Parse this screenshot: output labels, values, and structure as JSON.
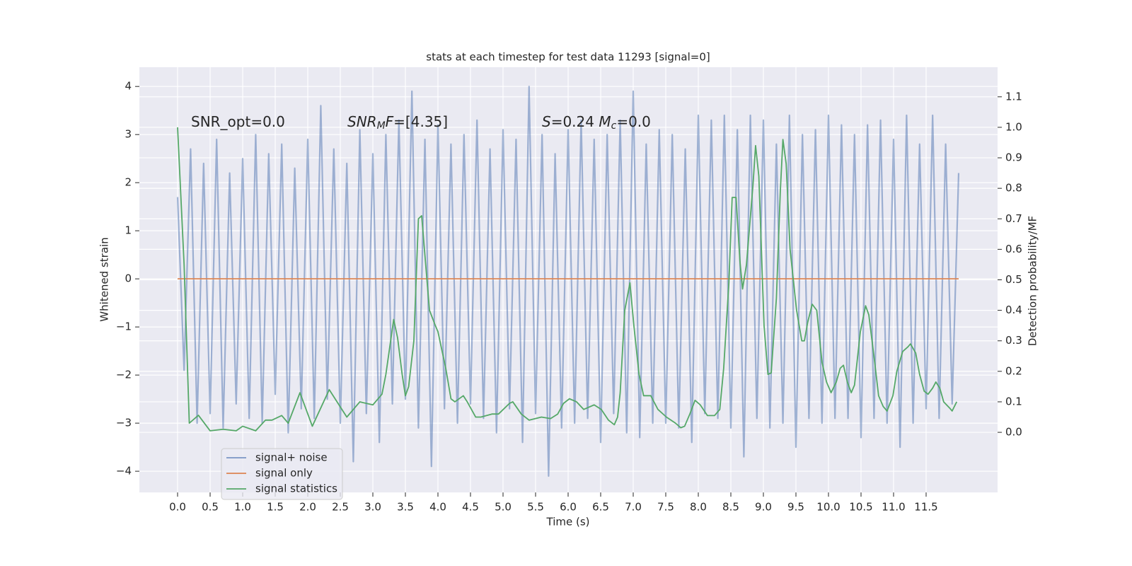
{
  "chart_data": {
    "type": "line",
    "title": "stats at each timestep for test data 11293 [signal=0]",
    "xlabel": "Time (s)",
    "ylabel": "Whitened strain",
    "y2label": "Detection probability/MF",
    "xlim": [
      -0.587,
      12.598
    ],
    "ylim": [
      -4.44,
      4.4
    ],
    "y2lim": [
      -0.197,
      1.197
    ],
    "xticks": [
      {
        "value": 0,
        "label": "0.0"
      },
      {
        "value": 0.5,
        "label": "0.5"
      },
      {
        "value": 1,
        "label": "1.0"
      },
      {
        "value": 1.5,
        "label": "1.5"
      },
      {
        "value": 2,
        "label": "2.0"
      },
      {
        "value": 2.5,
        "label": "2.5"
      },
      {
        "value": 3,
        "label": "3.0"
      },
      {
        "value": 3.5,
        "label": "3.5"
      },
      {
        "value": 4,
        "label": "4.0"
      },
      {
        "value": 4.5,
        "label": "4.5"
      },
      {
        "value": 5,
        "label": "5.0"
      },
      {
        "value": 5.5,
        "label": "5.5"
      },
      {
        "value": 6,
        "label": "6.0"
      },
      {
        "value": 6.5,
        "label": "6.5"
      },
      {
        "value": 7,
        "label": "7.0"
      },
      {
        "value": 7.5,
        "label": "7.5"
      },
      {
        "value": 8,
        "label": "8.0"
      },
      {
        "value": 8.5,
        "label": "8.5"
      },
      {
        "value": 9,
        "label": "9.0"
      },
      {
        "value": 9.5,
        "label": "9.5"
      },
      {
        "value": 10,
        "label": "10.0"
      },
      {
        "value": 10.5,
        "label": "10.5"
      },
      {
        "value": 11,
        "label": "11.0"
      },
      {
        "value": 11.5,
        "label": "11.5"
      }
    ],
    "yticks": [
      {
        "value": -4,
        "label": "−4"
      },
      {
        "value": -3,
        "label": "−3"
      },
      {
        "value": -2,
        "label": "−2"
      },
      {
        "value": -1,
        "label": "−1"
      },
      0,
      1,
      2,
      3,
      4
    ],
    "y2ticks": [
      {
        "value": 0,
        "label": "0.0"
      },
      {
        "value": 0.1,
        "label": "0.1"
      },
      {
        "value": 0.2,
        "label": "0.2"
      },
      {
        "value": 0.3,
        "label": "0.3"
      },
      {
        "value": 0.4,
        "label": "0.4"
      },
      {
        "value": 0.5,
        "label": "0.5"
      },
      {
        "value": 0.6,
        "label": "0.6"
      },
      {
        "value": 0.7,
        "label": "0.7"
      },
      {
        "value": 0.8,
        "label": "0.8"
      },
      {
        "value": 0.9,
        "label": "0.9"
      },
      {
        "value": 1,
        "label": "1.0"
      },
      {
        "value": 1.1,
        "label": "1.1"
      }
    ],
    "grid": true,
    "legend_loc": "lower left",
    "annotations": [
      [
        {
          "text": "SNR_opt=0.0"
        }
      ],
      [
        {
          "text": "SNR",
          "italic": true
        },
        {
          "text": "M",
          "italic": true,
          "sub": true
        },
        {
          "text": "F",
          "italic": true
        },
        {
          "text": "=[4.35]"
        }
      ],
      [
        {
          "text": "S",
          "italic": true
        },
        {
          "text": "=0.24   "
        },
        {
          "text": "M",
          "italic": true
        },
        {
          "text": "c",
          "italic": true,
          "sub": true
        },
        {
          "text": "=0.0"
        }
      ]
    ],
    "series": [
      {
        "name": "signal+ noise",
        "color": "#4c72b0",
        "alpha": 0.5,
        "x": [
          0,
          0.1,
          0.2,
          0.3,
          0.4,
          0.5,
          0.6,
          0.7,
          0.8,
          0.9,
          1.0,
          1.1,
          1.2,
          1.3,
          1.4,
          1.5,
          1.6,
          1.7,
          1.8,
          1.9,
          2.0,
          2.1,
          2.2,
          2.3,
          2.4,
          2.5,
          2.6,
          2.7,
          2.8,
          2.9,
          3.0,
          3.1,
          3.2,
          3.3,
          3.4,
          3.5,
          3.6,
          3.7,
          3.8,
          3.9,
          4.0,
          4.1,
          4.2,
          4.3,
          4.4,
          4.5,
          4.6,
          4.7,
          4.8,
          4.9,
          5.0,
          5.1,
          5.2,
          5.3,
          5.4,
          5.5,
          5.6,
          5.7,
          5.8,
          5.9,
          6.0,
          6.1,
          6.2,
          6.3,
          6.4,
          6.5,
          6.6,
          6.7,
          6.8,
          6.9,
          7.0,
          7.1,
          7.2,
          7.3,
          7.4,
          7.5,
          7.6,
          7.7,
          7.8,
          7.9,
          8.0,
          8.1,
          8.2,
          8.3,
          8.4,
          8.5,
          8.6,
          8.7,
          8.8,
          8.9,
          9.0,
          9.1,
          9.2,
          9.3,
          9.4,
          9.5,
          9.6,
          9.7,
          9.8,
          9.9,
          10.0,
          10.1,
          10.2,
          10.3,
          10.4,
          10.5,
          10.6,
          10.7,
          10.8,
          10.9,
          11.0,
          11.1,
          11.2,
          11.3,
          11.4,
          11.5,
          11.6,
          11.7,
          11.8,
          11.9,
          12.0
        ],
        "values": [
          1.7,
          -1.9,
          2.7,
          -3.0,
          2.4,
          -2.8,
          2.9,
          -3.1,
          2.2,
          -2.6,
          2.5,
          -2.9,
          3.0,
          -3.0,
          2.6,
          -2.4,
          2.8,
          -3.2,
          2.3,
          -2.7,
          2.9,
          -2.9,
          3.6,
          -2.5,
          2.7,
          -3.0,
          2.4,
          -3.8,
          3.1,
          -2.8,
          2.6,
          -3.4,
          3.0,
          -2.6,
          3.3,
          -2.5,
          3.9,
          -3.1,
          2.9,
          -3.9,
          3.2,
          -2.7,
          2.8,
          -3.0,
          3.0,
          -2.6,
          3.3,
          -2.9,
          2.7,
          -3.2,
          3.1,
          -2.7,
          2.9,
          -3.4,
          4.0,
          -2.8,
          3.0,
          -4.1,
          2.6,
          -3.1,
          3.1,
          -3.0,
          3.3,
          -2.9,
          2.9,
          -3.4,
          3.0,
          -2.8,
          3.3,
          -3.2,
          3.9,
          -3.3,
          2.8,
          -3.0,
          3.1,
          -3.0,
          3.0,
          -3.1,
          2.7,
          -3.4,
          3.4,
          -2.8,
          3.3,
          -2.9,
          3.4,
          -3.1,
          3.1,
          -3.7,
          3.4,
          -2.9,
          3.3,
          -3.1,
          2.8,
          -3.0,
          3.4,
          -3.5,
          3.0,
          -2.9,
          3.1,
          -3.0,
          3.4,
          -2.9,
          3.2,
          -2.9,
          3.0,
          -3.3,
          3.2,
          -2.9,
          3.3,
          -3.0,
          2.9,
          -3.5,
          3.4,
          -3.0,
          2.8,
          -2.7,
          3.4,
          -2.9,
          2.8,
          -2.6,
          2.2
        ]
      },
      {
        "name": "signal only",
        "color": "#dd8452",
        "x": [
          0,
          12.0
        ],
        "values": [
          0,
          0
        ]
      },
      {
        "name": "signal statistics",
        "color": "#55a868",
        "axis": "y2",
        "x": [
          0,
          0.1,
          0.18,
          0.32,
          0.5,
          0.7,
          0.9,
          1.0,
          1.2,
          1.35,
          1.45,
          1.6,
          1.7,
          1.88,
          2.07,
          2.33,
          2.6,
          2.8,
          3.0,
          3.14,
          3.2,
          3.32,
          3.38,
          3.45,
          3.5,
          3.55,
          3.63,
          3.7,
          3.75,
          3.8,
          3.87,
          3.96,
          4.0,
          4.12,
          4.2,
          4.26,
          4.39,
          4.45,
          4.58,
          4.66,
          4.83,
          4.93,
          5.1,
          5.15,
          5.28,
          5.4,
          5.59,
          5.73,
          5.84,
          5.93,
          6.02,
          6.13,
          6.24,
          6.4,
          6.51,
          6.62,
          6.71,
          6.76,
          6.8,
          6.87,
          6.95,
          7.01,
          7.09,
          7.16,
          7.27,
          7.38,
          7.51,
          7.65,
          7.73,
          7.79,
          7.87,
          7.95,
          8.03,
          8.14,
          8.25,
          8.33,
          8.39,
          8.47,
          8.52,
          8.58,
          8.64,
          8.68,
          8.74,
          8.84,
          8.88,
          8.93,
          9.01,
          9.07,
          9.12,
          9.2,
          9.26,
          9.3,
          9.35,
          9.41,
          9.51,
          9.59,
          9.63,
          9.68,
          9.75,
          9.82,
          9.9,
          9.97,
          10.04,
          10.12,
          10.18,
          10.23,
          10.29,
          10.35,
          10.4,
          10.49,
          10.57,
          10.62,
          10.71,
          10.77,
          10.84,
          10.9,
          10.99,
          11.05,
          11.14,
          11.22,
          11.26,
          11.34,
          11.4,
          11.47,
          11.53,
          11.6,
          11.65,
          11.71,
          11.77,
          11.86,
          11.9,
          11.97
        ],
        "values": [
          1.0,
          0.55,
          0.03,
          0.056,
          0.005,
          0.01,
          0.005,
          0.02,
          0.005,
          0.04,
          0.04,
          0.055,
          0.03,
          0.13,
          0.02,
          0.14,
          0.05,
          0.1,
          0.09,
          0.125,
          0.19,
          0.37,
          0.31,
          0.19,
          0.12,
          0.15,
          0.3,
          0.7,
          0.71,
          0.58,
          0.4,
          0.35,
          0.33,
          0.21,
          0.11,
          0.1,
          0.12,
          0.1,
          0.05,
          0.05,
          0.06,
          0.06,
          0.095,
          0.1,
          0.06,
          0.04,
          0.05,
          0.045,
          0.06,
          0.095,
          0.11,
          0.1,
          0.075,
          0.09,
          0.075,
          0.04,
          0.025,
          0.05,
          0.13,
          0.4,
          0.49,
          0.35,
          0.19,
          0.12,
          0.12,
          0.075,
          0.05,
          0.03,
          0.015,
          0.02,
          0.06,
          0.105,
          0.09,
          0.055,
          0.055,
          0.075,
          0.21,
          0.49,
          0.77,
          0.77,
          0.56,
          0.47,
          0.55,
          0.81,
          0.94,
          0.84,
          0.35,
          0.19,
          0.195,
          0.44,
          0.79,
          0.96,
          0.88,
          0.6,
          0.4,
          0.3,
          0.3,
          0.36,
          0.42,
          0.4,
          0.23,
          0.165,
          0.13,
          0.165,
          0.21,
          0.22,
          0.165,
          0.13,
          0.155,
          0.33,
          0.415,
          0.385,
          0.23,
          0.12,
          0.085,
          0.07,
          0.12,
          0.2,
          0.265,
          0.28,
          0.29,
          0.26,
          0.19,
          0.135,
          0.125,
          0.145,
          0.165,
          0.145,
          0.1,
          0.08,
          0.07,
          0.1
        ]
      }
    ]
  }
}
